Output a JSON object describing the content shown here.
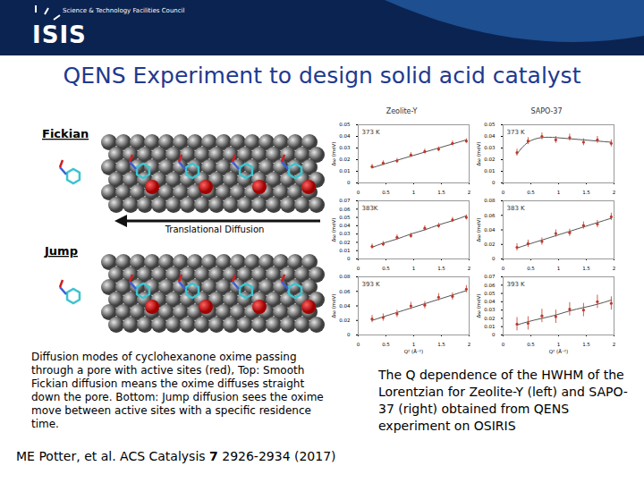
{
  "slide": {
    "logo_org": "Science & Technology Facilities Council",
    "logo": "ISIS",
    "title": "QENS Experiment to design solid acid catalyst",
    "diagram": {
      "labels": [
        "Fickian",
        "Jump"
      ],
      "arrow_label": "Translational Diffusion",
      "caption": "Diffusion modes of cyclohexanone oxime passing through a pore with active sites (red), Top: Smooth Fickian diffusion means the oxime diffuses straight down the pore. Bottom:  Jump diffusion sees the oxime move between active sites with a specific residence time."
    },
    "citation": {
      "authors": "ME Potter, et al.",
      "journal": "ACS Catalysis",
      "volume": "7",
      "pages": "2926-2934 (2017)"
    },
    "column_titles": [
      "Zeolite-Y",
      "SAPO-37"
    ],
    "charts_caption": "The Q dependence of the HWHM of the Lorentzian for Zeolite-Y (left) and SAPO-37 (right) obtained from QENS experiment on OSIRIS"
  },
  "chart_data": [
    {
      "type": "scatter",
      "annotation": "373 K",
      "ylabel": "Δω (meV)",
      "xlim": [
        0,
        2
      ],
      "xticks": [
        0,
        0.5,
        1,
        1.5,
        2
      ],
      "ylim": [
        0,
        0.05
      ],
      "yticks": [
        0,
        0.01,
        0.02,
        0.03,
        0.04,
        0.05
      ],
      "x": [
        0.25,
        0.45,
        0.7,
        0.95,
        1.2,
        1.45,
        1.7,
        1.95
      ],
      "series": [
        {
          "type": "scatter",
          "color": "#c0392b",
          "marker": "circle",
          "values": [
            0.014,
            0.017,
            0.019,
            0.024,
            0.027,
            0.029,
            0.034,
            0.036
          ],
          "errors": [
            0.002,
            0.002,
            0.002,
            0.002,
            0.002,
            0.002,
            0.002,
            0.002
          ]
        },
        {
          "type": "line",
          "color": "#555555",
          "values": [
            0.013,
            0.016,
            0.0195,
            0.023,
            0.0265,
            0.03,
            0.0335,
            0.037
          ]
        }
      ]
    },
    {
      "type": "scatter",
      "annotation": "383K",
      "ylabel": "Δω (meV)",
      "xlim": [
        0,
        2
      ],
      "xticks": [
        0,
        0.5,
        1,
        1.5,
        2
      ],
      "ylim": [
        0,
        0.07
      ],
      "yticks": [
        0,
        0.01,
        0.02,
        0.03,
        0.04,
        0.05,
        0.06,
        0.07
      ],
      "x": [
        0.25,
        0.45,
        0.7,
        0.95,
        1.2,
        1.45,
        1.7,
        1.95
      ],
      "series": [
        {
          "type": "scatter",
          "color": "#c0392b",
          "marker": "circle",
          "values": [
            0.015,
            0.018,
            0.026,
            0.028,
            0.037,
            0.04,
            0.047,
            0.05
          ],
          "errors": [
            0.003,
            0.003,
            0.003,
            0.003,
            0.003,
            0.003,
            0.003,
            0.003
          ]
        },
        {
          "type": "line",
          "color": "#555555",
          "values": [
            0.014,
            0.019,
            0.024,
            0.03,
            0.035,
            0.041,
            0.046,
            0.052
          ]
        }
      ]
    },
    {
      "type": "scatter",
      "annotation": "393 K",
      "ylabel": "Δω (meV)",
      "xlabel": "Q² (Å⁻²)",
      "xlim": [
        0,
        2
      ],
      "xticks": [
        0,
        0.5,
        1,
        1.5,
        2
      ],
      "ylim": [
        0,
        0.08
      ],
      "yticks": [
        0,
        0.02,
        0.04,
        0.06,
        0.08
      ],
      "x": [
        0.25,
        0.45,
        0.7,
        0.95,
        1.2,
        1.45,
        1.7,
        1.95
      ],
      "series": [
        {
          "type": "scatter",
          "color": "#c0392b",
          "marker": "circle",
          "values": [
            0.022,
            0.024,
            0.029,
            0.04,
            0.041,
            0.052,
            0.053,
            0.063
          ],
          "errors": [
            0.005,
            0.005,
            0.005,
            0.005,
            0.005,
            0.005,
            0.005,
            0.005
          ]
        },
        {
          "type": "line",
          "color": "#555555",
          "values": [
            0.02,
            0.025,
            0.031,
            0.037,
            0.043,
            0.049,
            0.055,
            0.061
          ]
        }
      ]
    },
    {
      "type": "scatter",
      "annotation": "373 K",
      "ylabel": "Δω (meV)",
      "xlim": [
        0,
        2
      ],
      "xticks": [
        0,
        0.5,
        1,
        1.5,
        2
      ],
      "ylim": [
        0,
        0.05
      ],
      "yticks": [
        0,
        0.01,
        0.02,
        0.03,
        0.04,
        0.05
      ],
      "x": [
        0.25,
        0.45,
        0.7,
        0.95,
        1.2,
        1.45,
        1.7,
        1.95
      ],
      "series": [
        {
          "type": "scatter",
          "color": "#c0392b",
          "marker": "circle",
          "values": [
            0.026,
            0.036,
            0.04,
            0.037,
            0.039,
            0.035,
            0.037,
            0.034
          ],
          "errors": [
            0.003,
            0.003,
            0.003,
            0.003,
            0.003,
            0.003,
            0.003,
            0.003
          ]
        },
        {
          "type": "line",
          "color": "#555555",
          "values": [
            0.025,
            0.035,
            0.039,
            0.039,
            0.038,
            0.037,
            0.036,
            0.035
          ]
        }
      ]
    },
    {
      "type": "scatter",
      "annotation": "383 K",
      "ylabel": "Δω (meV)",
      "xlim": [
        0,
        2
      ],
      "xticks": [
        0,
        0.5,
        1,
        1.5,
        2
      ],
      "ylim": [
        0,
        0.08
      ],
      "yticks": [
        0,
        0.02,
        0.04,
        0.06,
        0.08
      ],
      "x": [
        0.25,
        0.45,
        0.7,
        0.95,
        1.2,
        1.45,
        1.7,
        1.95
      ],
      "series": [
        {
          "type": "scatter",
          "color": "#c0392b",
          "marker": "circle",
          "values": [
            0.016,
            0.021,
            0.024,
            0.035,
            0.036,
            0.046,
            0.048,
            0.058
          ],
          "errors": [
            0.005,
            0.005,
            0.005,
            0.005,
            0.005,
            0.005,
            0.005,
            0.005
          ]
        },
        {
          "type": "line",
          "color": "#555555",
          "values": [
            0.015,
            0.02,
            0.026,
            0.032,
            0.038,
            0.044,
            0.05,
            0.056
          ]
        }
      ]
    },
    {
      "type": "scatter",
      "annotation": "393 K",
      "ylabel": "Δω (meV)",
      "xlabel": "Q² (Å⁻²)",
      "xlim": [
        0,
        2
      ],
      "xticks": [
        0,
        0.5,
        1,
        1.5,
        2
      ],
      "ylim": [
        0,
        0.07
      ],
      "yticks": [
        0,
        0.01,
        0.02,
        0.03,
        0.04,
        0.05,
        0.06,
        0.07
      ],
      "x": [
        0.25,
        0.45,
        0.7,
        0.95,
        1.2,
        1.45,
        1.7,
        1.95
      ],
      "series": [
        {
          "type": "scatter",
          "color": "#c0392b",
          "marker": "circle",
          "values": [
            0.013,
            0.014,
            0.023,
            0.022,
            0.031,
            0.03,
            0.04,
            0.038
          ],
          "errors": [
            0.008,
            0.008,
            0.008,
            0.008,
            0.008,
            0.008,
            0.008,
            0.008
          ]
        },
        {
          "type": "line",
          "color": "#555555",
          "values": [
            0.012,
            0.016,
            0.02,
            0.024,
            0.029,
            0.033,
            0.037,
            0.042
          ]
        }
      ]
    }
  ]
}
